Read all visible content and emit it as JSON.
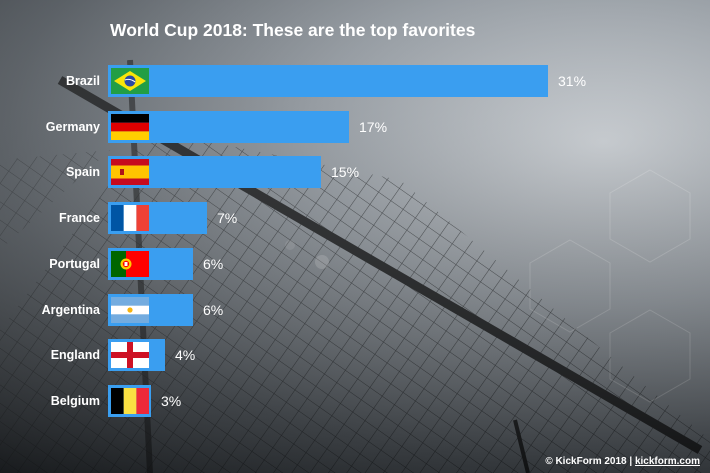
{
  "title": "World Cup 2018: These are the top favorites",
  "chart_data": {
    "type": "bar",
    "orientation": "horizontal",
    "title": "World Cup 2018: These are the top favorites",
    "categories": [
      "Brazil",
      "Germany",
      "Spain",
      "France",
      "Portugal",
      "Argentina",
      "England",
      "Belgium"
    ],
    "values": [
      31,
      17,
      15,
      7,
      6,
      6,
      4,
      3
    ],
    "value_labels": [
      "31%",
      "17%",
      "15%",
      "7%",
      "6%",
      "6%",
      "4%",
      "3%"
    ],
    "unit": "%",
    "xlim": [
      0,
      31
    ],
    "grid": false,
    "bar_color": "#3a9ef0"
  },
  "flags": [
    "brazil-flag-icon",
    "germany-flag-icon",
    "spain-flag-icon",
    "france-flag-icon",
    "portugal-flag-icon",
    "argentina-flag-icon",
    "england-flag-icon",
    "belgium-flag-icon"
  ],
  "footer": {
    "copyright": "© KickForm 2018 | ",
    "site": "kickform.com"
  }
}
